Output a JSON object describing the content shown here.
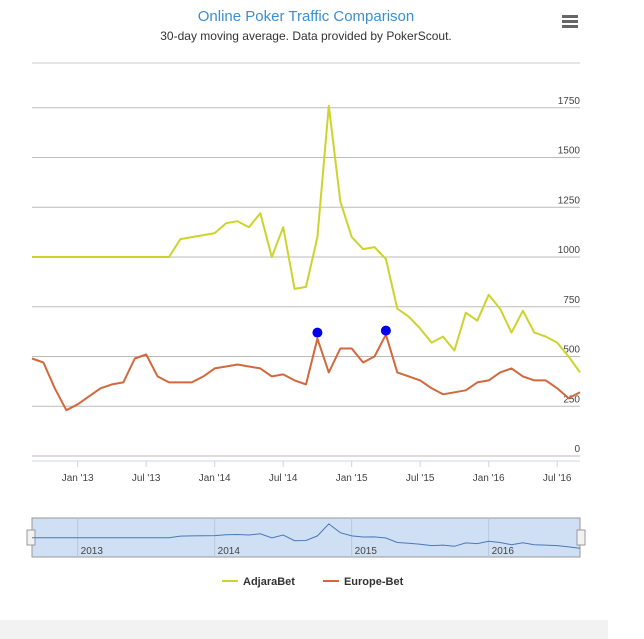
{
  "chart_data": {
    "type": "line",
    "title": "Online Poker Traffic Comparison",
    "subtitle": "30-day moving average. Data provided by PokerScout.",
    "x": [
      "2012-09",
      "2012-10",
      "2012-11",
      "2012-12",
      "2013-01",
      "2013-02",
      "2013-03",
      "2013-04",
      "2013-05",
      "2013-06",
      "2013-07",
      "2013-08",
      "2013-09",
      "2013-10",
      "2013-11",
      "2013-12",
      "2014-01",
      "2014-02",
      "2014-03",
      "2014-04",
      "2014-05",
      "2014-06",
      "2014-07",
      "2014-08",
      "2014-09",
      "2014-10",
      "2014-11",
      "2014-12",
      "2015-01",
      "2015-02",
      "2015-03",
      "2015-04",
      "2015-05",
      "2015-06",
      "2015-07",
      "2015-08",
      "2015-09",
      "2015-10",
      "2015-11",
      "2015-12",
      "2016-01",
      "2016-02",
      "2016-03",
      "2016-04",
      "2016-05",
      "2016-06",
      "2016-07",
      "2016-08",
      "2016-09"
    ],
    "series": [
      {
        "name": "AdjaraBet",
        "color": "#ccd42c",
        "values": [
          1000,
          1000,
          1000,
          1000,
          1000,
          1000,
          1000,
          1000,
          1000,
          1000,
          1000,
          1000,
          1000,
          1090,
          1100,
          1110,
          1120,
          1170,
          1180,
          1150,
          1220,
          1000,
          1150,
          840,
          850,
          1100,
          1760,
          1280,
          1100,
          1040,
          1050,
          990,
          740,
          700,
          640,
          570,
          600,
          530,
          720,
          680,
          810,
          740,
          620,
          730,
          620,
          600,
          570,
          500,
          420
        ]
      },
      {
        "name": "Europe-Bet",
        "color": "#d2683c",
        "values": [
          490,
          470,
          340,
          230,
          260,
          300,
          340,
          360,
          370,
          490,
          510,
          400,
          370,
          370,
          370,
          400,
          440,
          450,
          460,
          450,
          440,
          400,
          410,
          380,
          360,
          590,
          420,
          540,
          540,
          470,
          500,
          610,
          420,
          400,
          380,
          340,
          310,
          320,
          330,
          370,
          380,
          420,
          440,
          400,
          380,
          380,
          340,
          290,
          320
        ]
      }
    ],
    "markers": {
      "color": "#0000ee",
      "x": [
        "2014-10",
        "2015-04"
      ],
      "y": [
        620,
        630
      ]
    },
    "xlim": [
      "2012-09",
      "2016-09"
    ],
    "xticks": [
      {
        "value": "2013-01",
        "label": "Jan '13"
      },
      {
        "value": "2013-07",
        "label": "Jul '13"
      },
      {
        "value": "2014-01",
        "label": "Jan '14"
      },
      {
        "value": "2014-07",
        "label": "Jul '14"
      },
      {
        "value": "2015-01",
        "label": "Jan '15"
      },
      {
        "value": "2015-07",
        "label": "Jul '15"
      },
      {
        "value": "2016-01",
        "label": "Jan '16"
      },
      {
        "value": "2016-07",
        "label": "Jul '16"
      }
    ],
    "ylim": [
      0,
      1975
    ],
    "yticks": [
      0,
      250,
      500,
      750,
      1000,
      1250,
      1500,
      1750
    ],
    "grid": true,
    "legend": "bottom",
    "navigator": {
      "xticks": [
        {
          "value": "2013-01",
          "label": "2013"
        },
        {
          "value": "2014-01",
          "label": "2014"
        },
        {
          "value": "2015-01",
          "label": "2015"
        },
        {
          "value": "2016-01",
          "label": "2016"
        }
      ]
    }
  }
}
